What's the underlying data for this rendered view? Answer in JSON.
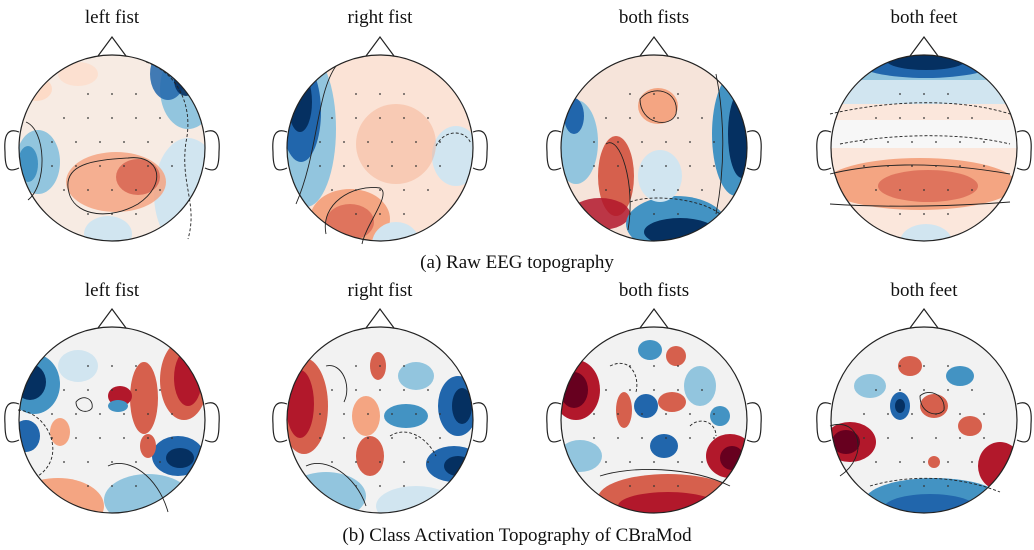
{
  "rows": [
    {
      "caption": "(a) Raw EEG topography",
      "panels": [
        {
          "label": "left fist"
        },
        {
          "label": "right fist"
        },
        {
          "label": "both fists"
        },
        {
          "label": "both feet"
        }
      ]
    },
    {
      "caption": "(b) Class Activation Topography of CBraMod",
      "panels": [
        {
          "label": "left fist"
        },
        {
          "label": "right fist"
        },
        {
          "label": "both fists"
        },
        {
          "label": "both feet"
        }
      ]
    }
  ],
  "colors": {
    "positive": "#b2182b",
    "negative": "#053061",
    "neutral": "#f7f7f7",
    "outline": "#222222"
  }
}
